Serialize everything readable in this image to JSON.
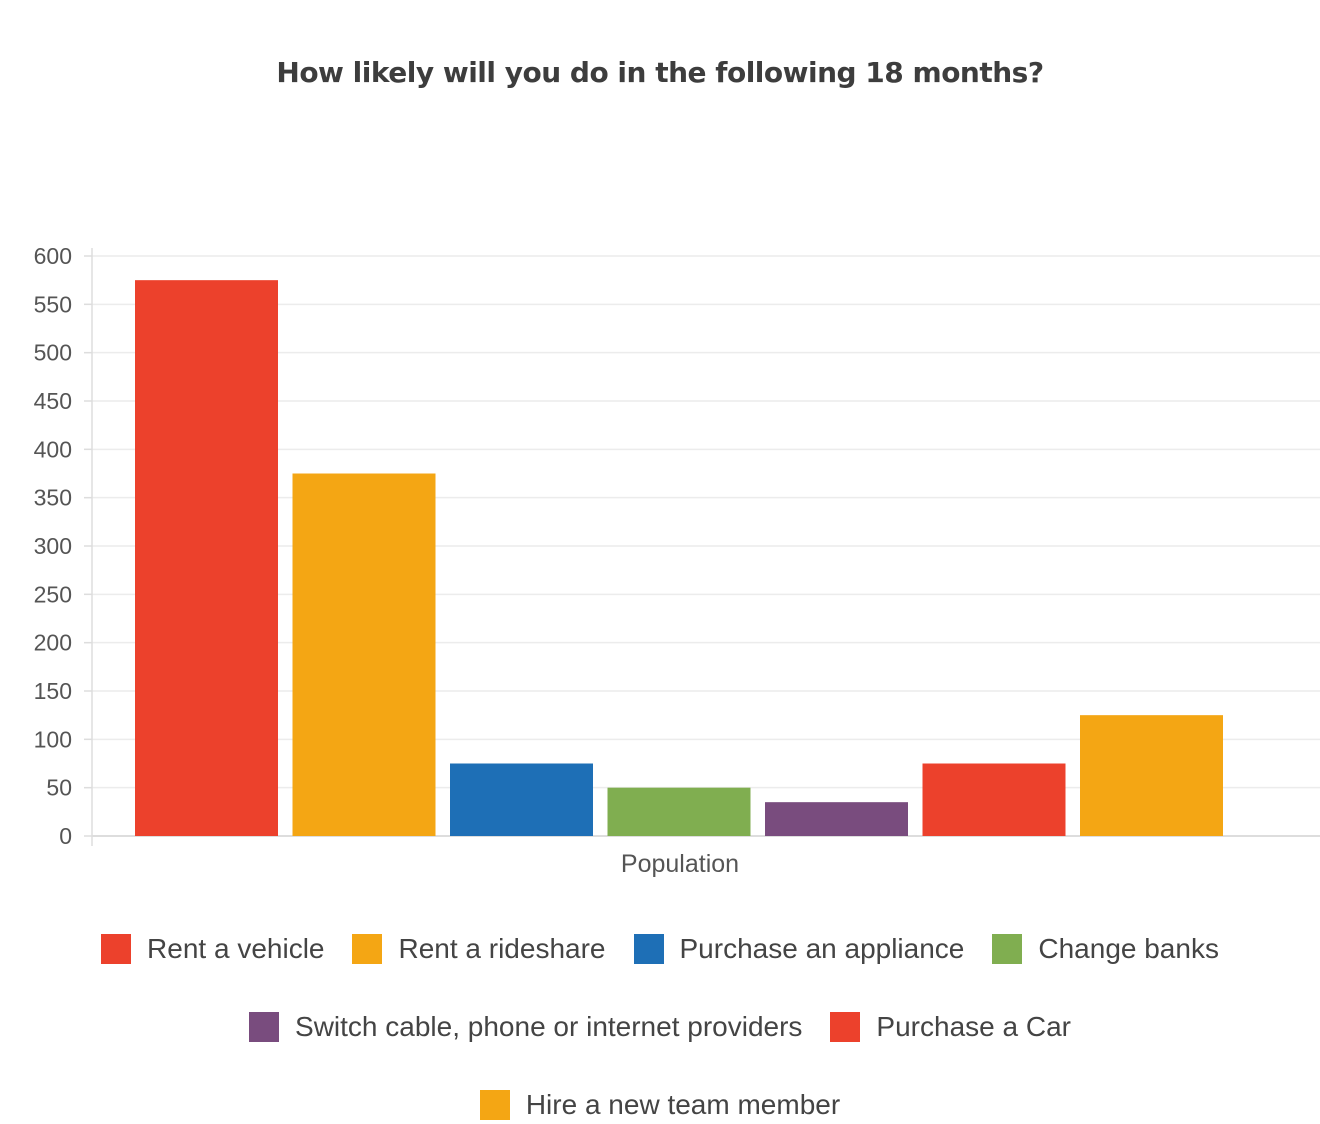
{
  "chart_data": {
    "type": "bar",
    "title": "How likely will you do in the following 18 months?",
    "xlabel": "Population",
    "ylabel": "",
    "ylim": [
      0,
      600
    ],
    "yticks": [
      0,
      50,
      100,
      150,
      200,
      250,
      300,
      350,
      400,
      450,
      500,
      550,
      600
    ],
    "categories": [
      "Population"
    ],
    "grid": true,
    "legend_position": "bottom",
    "series": [
      {
        "name": "Rent a vehicle",
        "values": [
          575
        ],
        "color": "#EC412C"
      },
      {
        "name": "Rent a rideshare",
        "values": [
          375
        ],
        "color": "#F4A614"
      },
      {
        "name": "Purchase an appliance",
        "values": [
          75
        ],
        "color": "#1E6FB6"
      },
      {
        "name": "Change banks",
        "values": [
          50
        ],
        "color": "#80AE50"
      },
      {
        "name": "Switch cable, phone or internet providers",
        "values": [
          35
        ],
        "color": "#794C7E"
      },
      {
        "name": "Purchase a Car",
        "values": [
          75
        ],
        "color": "#EC412C"
      },
      {
        "name": "Hire a new team member",
        "values": [
          125
        ],
        "color": "#F4A614"
      }
    ]
  }
}
